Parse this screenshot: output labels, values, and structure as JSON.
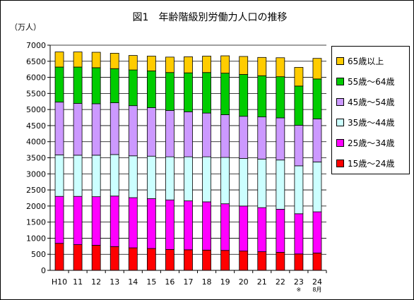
{
  "chart_data": {
    "type": "bar",
    "stacked": true,
    "title": "図1　年齢階級別労働力人口の推移",
    "ylabel": "（万人）",
    "ylim": [
      0,
      7000
    ],
    "yticks": [
      0,
      500,
      1000,
      1500,
      2000,
      2500,
      3000,
      3500,
      4000,
      4500,
      5000,
      5500,
      6000,
      6500,
      7000
    ],
    "categories": [
      "H10",
      "11",
      "12",
      "13",
      "14",
      "15",
      "16",
      "17",
      "18",
      "19",
      "20",
      "21",
      "22",
      "23",
      "24"
    ],
    "category_notes": [
      "",
      "",
      "",
      "",
      "",
      "",
      "",
      "",
      "",
      "",
      "",
      "",
      "",
      "※",
      "8月"
    ],
    "grid": true,
    "legend_position": "right",
    "series": [
      {
        "name": "15歳～24歳",
        "color": "#ff0000",
        "values": [
          840,
          800,
          780,
          740,
          700,
          680,
          650,
          640,
          630,
          620,
          600,
          580,
          560,
          510,
          540
        ]
      },
      {
        "name": "25歳～34歳",
        "color": "#ff00ff",
        "values": [
          1460,
          1500,
          1510,
          1570,
          1560,
          1550,
          1540,
          1520,
          1500,
          1450,
          1400,
          1370,
          1340,
          1250,
          1280
        ]
      },
      {
        "name": "35歳～44歳",
        "color": "#ccffff",
        "values": [
          1290,
          1280,
          1290,
          1290,
          1300,
          1320,
          1340,
          1370,
          1400,
          1440,
          1480,
          1510,
          1530,
          1490,
          1550
        ]
      },
      {
        "name": "45歳～54歳",
        "color": "#cc99ff",
        "values": [
          1640,
          1610,
          1600,
          1610,
          1560,
          1510,
          1440,
          1400,
          1360,
          1330,
          1310,
          1310,
          1310,
          1260,
          1340
        ]
      },
      {
        "name": "55歳～64歳",
        "color": "#00cc00",
        "values": [
          1090,
          1130,
          1120,
          1060,
          1110,
          1140,
          1180,
          1210,
          1260,
          1290,
          1300,
          1280,
          1280,
          1220,
          1240
        ]
      },
      {
        "name": "65歳以上",
        "color": "#ffcc00",
        "values": [
          470,
          470,
          480,
          480,
          450,
          460,
          480,
          500,
          510,
          540,
          560,
          570,
          590,
          580,
          640
        ]
      }
    ]
  }
}
